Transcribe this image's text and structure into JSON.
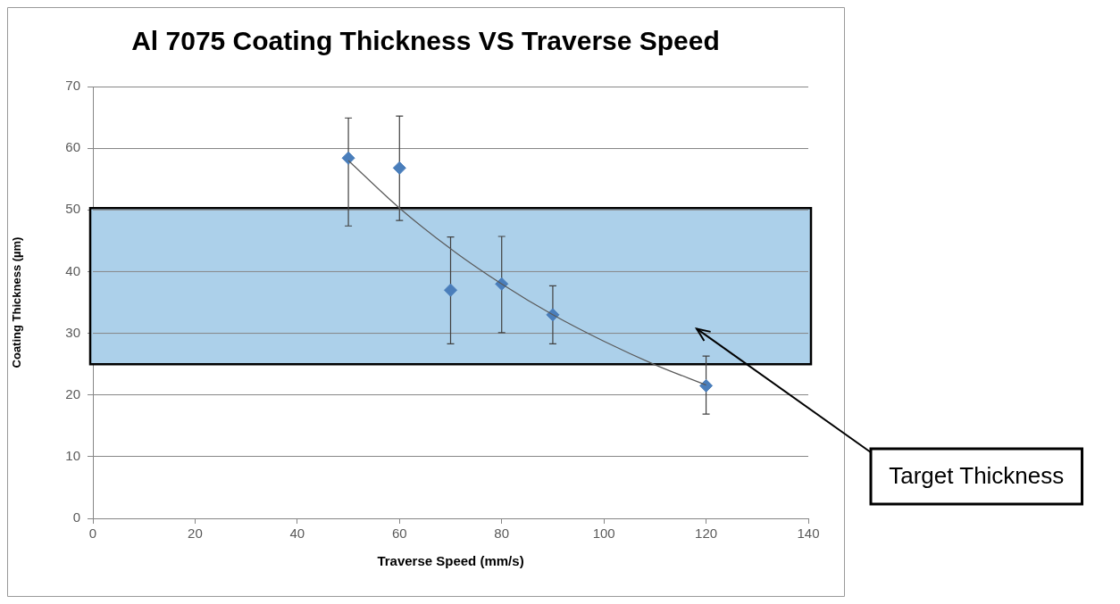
{
  "chart_data": {
    "type": "scatter",
    "title": "Al 7075 Coating Thickness VS Traverse Speed",
    "xlabel": "Traverse Speed (mm/s)",
    "ylabel": "Coating Thickness (µm)",
    "xlim": [
      0,
      140
    ],
    "xticks": [
      0,
      20,
      40,
      60,
      80,
      100,
      120,
      140
    ],
    "ylim": [
      0,
      70
    ],
    "yticks": [
      0,
      10,
      20,
      30,
      40,
      50,
      60,
      70
    ],
    "grid": "y",
    "series": [
      {
        "color": "#4a7ebb",
        "marker": "diamond",
        "x": [
          50,
          60,
          70,
          80,
          90,
          120
        ],
        "values": [
          58.4,
          56.8,
          37.0,
          38.0,
          33.0,
          21.5
        ],
        "errors": [
          [
            47.4,
            64.9
          ],
          [
            48.3,
            65.2
          ],
          [
            28.3,
            45.6
          ],
          [
            30.1,
            45.7
          ],
          [
            28.3,
            37.7
          ],
          [
            16.9,
            26.3
          ]
        ]
      },
      {
        "type": "line",
        "color": "#595959",
        "marker": "none",
        "x": [
          50,
          60,
          70,
          80,
          90,
          100,
          110,
          120
        ],
        "values": [
          58.0,
          50.3,
          43.7,
          38.0,
          33.0,
          28.7,
          24.9,
          21.6
        ]
      }
    ],
    "bands": [
      {
        "axis": "y",
        "from": 25,
        "to": 50.3,
        "label": "Target Thickness",
        "color": "#acd0ea"
      }
    ]
  }
}
